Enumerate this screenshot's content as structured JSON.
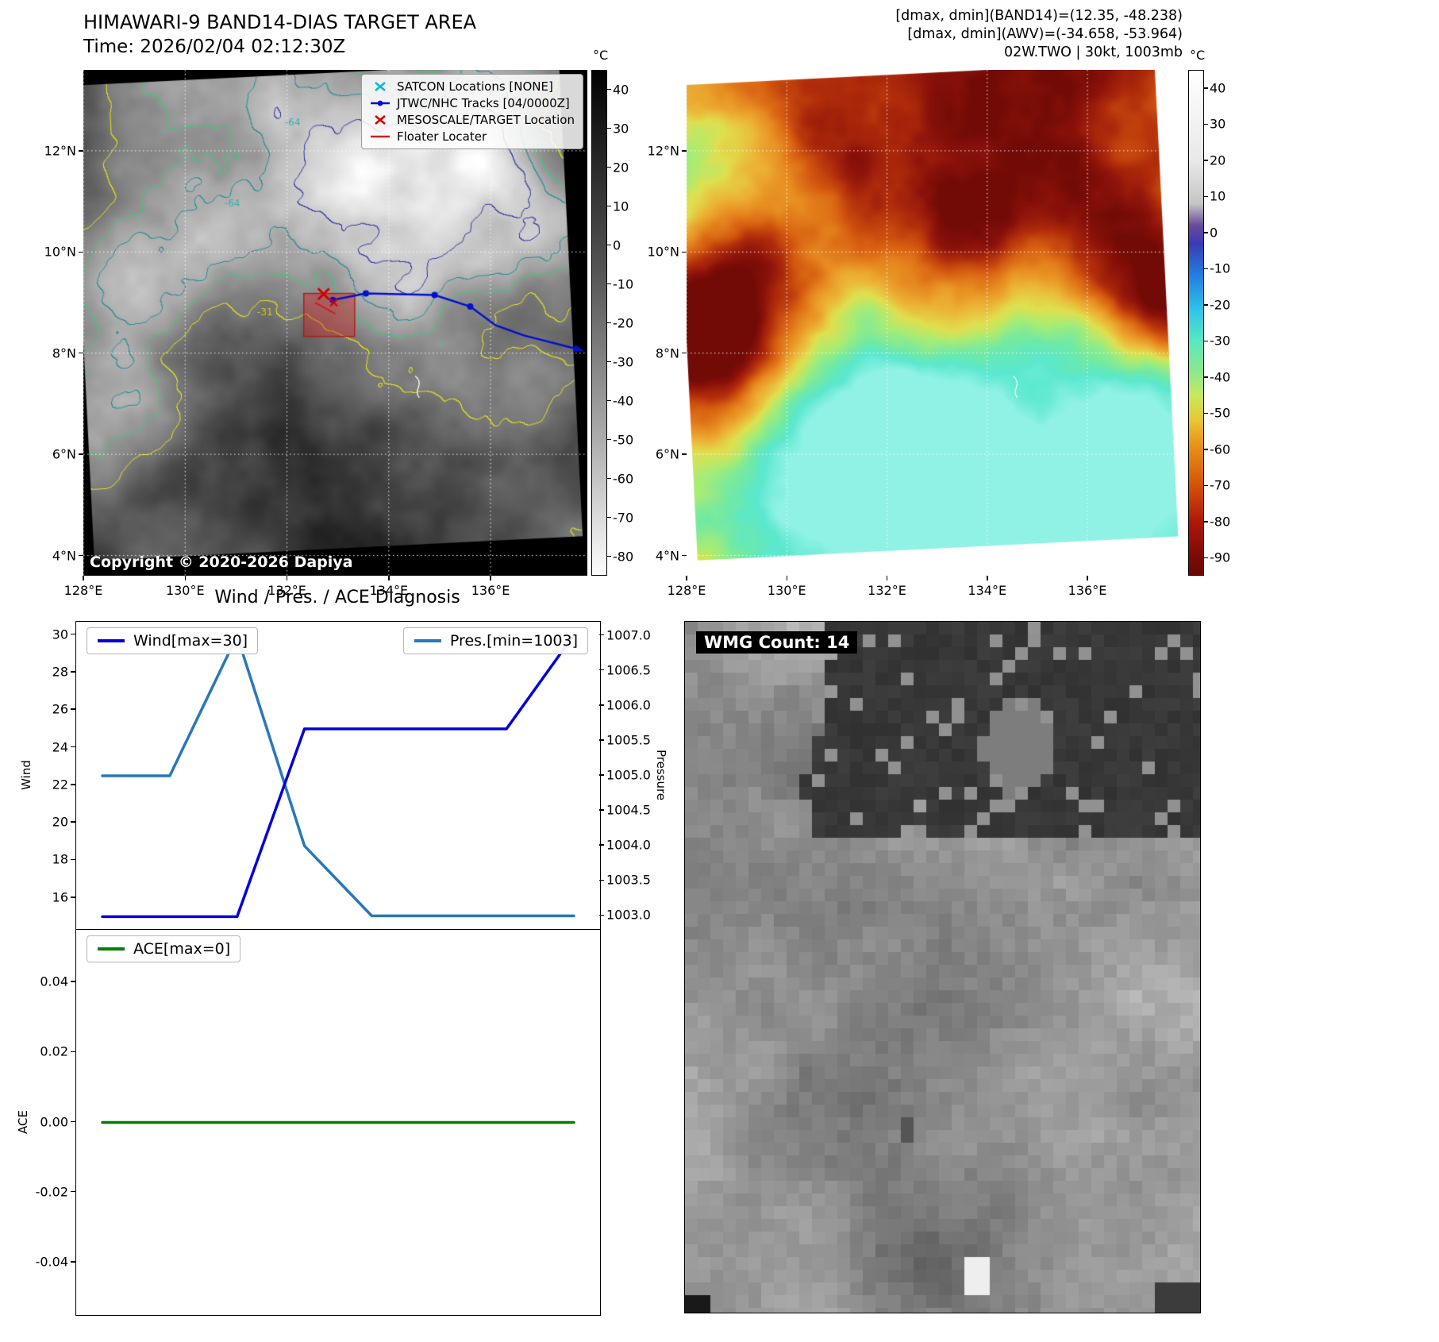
{
  "band14": {
    "title": "HIMAWARI-9 BAND14-DIAS TARGET AREA",
    "time": "Time: 2026/02/04 02:12:30Z",
    "copyright": "Copyright © 2020-2026 Dapiya",
    "legend": [
      {
        "label": "SATCON Locations [NONE]",
        "marker": "x",
        "color": "#00bcd4"
      },
      {
        "label": "JTWC/NHC Tracks [04/0000Z]",
        "marker": "linedot",
        "color": "#0010d0"
      },
      {
        "label": "MESOSCALE/TARGET Location",
        "marker": "x",
        "color": "#d40000"
      },
      {
        "label": "Floater Locater",
        "marker": "line",
        "color": "#cc2020"
      }
    ],
    "colorbar": {
      "unit": "°C",
      "vmax": 45,
      "vmin": -85,
      "ticks": [
        40,
        30,
        20,
        10,
        0,
        -10,
        -20,
        -30,
        -40,
        -50,
        -60,
        -70,
        -80
      ]
    },
    "extent": {
      "lon_min": 128,
      "lon_max": 137.9,
      "lat_min": 3.6,
      "lat_max": 13.6
    },
    "track": {
      "points": [
        [
          132.9,
          9.05
        ],
        [
          133.55,
          9.18
        ],
        [
          134.9,
          9.15
        ],
        [
          135.6,
          8.92
        ],
        [
          136.1,
          8.55
        ],
        [
          136.65,
          8.35
        ],
        [
          137.82,
          8.05
        ]
      ],
      "dot_count": 4
    },
    "target": {
      "lon": 132.72,
      "lat": 9.17
    },
    "floater_box": {
      "lon0": 132.33,
      "lat0": 8.33,
      "lon1": 133.33,
      "lat1": 9.18
    },
    "floater_line": [
      [
        132.55,
        9.0
      ],
      [
        132.95,
        8.78
      ]
    ],
    "contour_labels": [
      {
        "text": "-64",
        "fx": 0.4,
        "fy": 0.11,
        "color": "#35b0b0"
      },
      {
        "text": "-64",
        "fx": 0.28,
        "fy": 0.27,
        "color": "#35b0b0"
      },
      {
        "text": "-31",
        "fx": 0.345,
        "fy": 0.485,
        "color": "#cccc20"
      }
    ]
  },
  "awv": {
    "titles": [
      "[dmax, dmin](BAND14)=(12.35, -48.238)",
      "[dmax, dmin](AWV)=(-34.658, -53.964)",
      "02W.TWO | 30kt, 1003mb"
    ],
    "colorbar": {
      "unit": "°C",
      "vmax": 45,
      "vmin": -95,
      "ticks": [
        40,
        30,
        20,
        10,
        0,
        -10,
        -20,
        -30,
        -40,
        -50,
        -60,
        -70,
        -80,
        -90
      ]
    }
  },
  "geo": {
    "xticks": [
      {
        "label": "128°E",
        "f": 0.0
      },
      {
        "label": "130°E",
        "f": 0.202
      },
      {
        "label": "132°E",
        "f": 0.404
      },
      {
        "label": "134°E",
        "f": 0.606
      },
      {
        "label": "136°E",
        "f": 0.808
      }
    ],
    "yticks": [
      {
        "label": "12°N",
        "f": 0.16
      },
      {
        "label": "10°N",
        "f": 0.36
      },
      {
        "label": "8°N",
        "f": 0.56
      },
      {
        "label": "6°N",
        "f": 0.76
      },
      {
        "label": "4°N",
        "f": 0.96
      }
    ]
  },
  "wmg": {
    "label": "WMG Count: 14"
  },
  "diagnosis": {
    "title": "Wind / Pres. / ACE Diagnosis"
  },
  "chart_data": [
    {
      "type": "line",
      "title": "Wind / Pres. / ACE Diagnosis",
      "x": [
        0,
        1,
        2,
        3,
        4,
        5,
        6,
        7
      ],
      "series": [
        {
          "name": "Wind[max=30]",
          "axis": "left",
          "color": "#0000dd",
          "values": [
            15,
            15,
            15,
            25,
            25,
            25,
            25,
            30
          ]
        },
        {
          "name": "Pres.[min=1003]",
          "axis": "right",
          "color": "#2878b8",
          "values": [
            1005,
            1005,
            1007,
            1004,
            1003,
            1003,
            1003,
            1003
          ]
        }
      ],
      "left_axis": {
        "label": "Wind",
        "ticks": [
          16,
          18,
          20,
          22,
          24,
          26,
          28,
          30
        ],
        "min": 14.3,
        "max": 30.7
      },
      "right_axis": {
        "label": "Pressure",
        "ticks": [
          "1003.0",
          "1003.5",
          "1004.0",
          "1004.5",
          "1005.0",
          "1005.5",
          "1006.0",
          "1006.5",
          "1007.0"
        ],
        "min": 1002.8,
        "max": 1007.2
      }
    },
    {
      "type": "line",
      "x": [
        0,
        1,
        2,
        3,
        4,
        5,
        6,
        7
      ],
      "series": [
        {
          "name": "ACE[max=0]",
          "axis": "left",
          "color": "#008000",
          "values": [
            0,
            0,
            0,
            0,
            0,
            0,
            0,
            0
          ]
        }
      ],
      "left_axis": {
        "label": "ACE",
        "ticks": [
          "0.04",
          "0.02",
          "0.00",
          "-0.02",
          "-0.04"
        ],
        "min": -0.055,
        "max": 0.055
      }
    }
  ]
}
